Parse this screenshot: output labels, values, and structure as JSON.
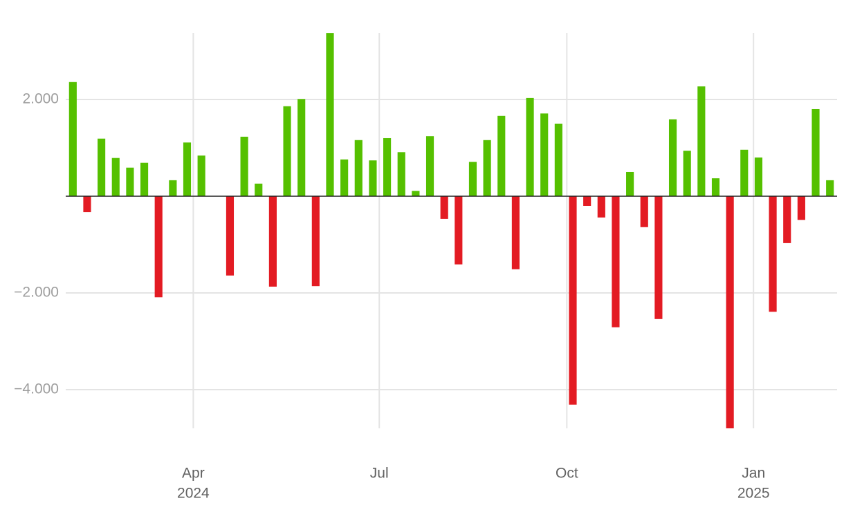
{
  "chart_data": {
    "type": "bar",
    "categories": [
      null,
      null,
      null,
      null,
      null,
      null,
      null,
      null,
      null,
      null,
      null,
      null,
      null,
      null,
      null,
      null,
      null,
      null,
      null,
      null,
      null,
      null,
      null,
      null,
      null,
      null,
      null,
      null,
      null,
      null,
      null,
      null,
      null,
      null,
      null,
      null,
      null,
      null,
      null,
      null,
      null,
      null,
      null,
      null,
      null,
      null,
      null,
      null,
      null,
      null,
      null,
      null,
      null,
      null
    ],
    "values": [
      2360,
      -330,
      1190,
      790,
      590,
      690,
      -2090,
      330,
      1110,
      840,
      0,
      -1640,
      1230,
      260,
      -1870,
      1860,
      2010,
      -1860,
      3370,
      760,
      1160,
      740,
      1200,
      910,
      110,
      1240,
      -470,
      -1410,
      710,
      1160,
      1660,
      -1510,
      2030,
      1710,
      1500,
      -4310,
      -200,
      -440,
      -2710,
      500,
      -640,
      -2540,
      1590,
      940,
      2270,
      370,
      -4800,
      960,
      800,
      -2390,
      -970,
      -490,
      1800,
      330
    ],
    "positive_color": "#55c000",
    "negative_color": "#e31b23",
    "xlim": [
      -0.5,
      53.5
    ],
    "xticks": [
      {
        "value": 8.43,
        "label": "Apr"
      },
      {
        "value": 21.45,
        "label": "Jul"
      },
      {
        "value": 34.58,
        "label": "Oct"
      },
      {
        "value": 47.65,
        "label": "Jan"
      }
    ],
    "xticks_year": [
      {
        "value": 8.43,
        "label": "2024"
      },
      {
        "value": 47.65,
        "label": "2025"
      }
    ],
    "ylim": [
      -4800,
      3371
    ],
    "yticks": [
      {
        "value": 2000,
        "label": "2.000"
      },
      {
        "value": -2000,
        "label": "−2.000"
      },
      {
        "value": -4000,
        "label": "−4.000"
      }
    ],
    "grid": true
  }
}
